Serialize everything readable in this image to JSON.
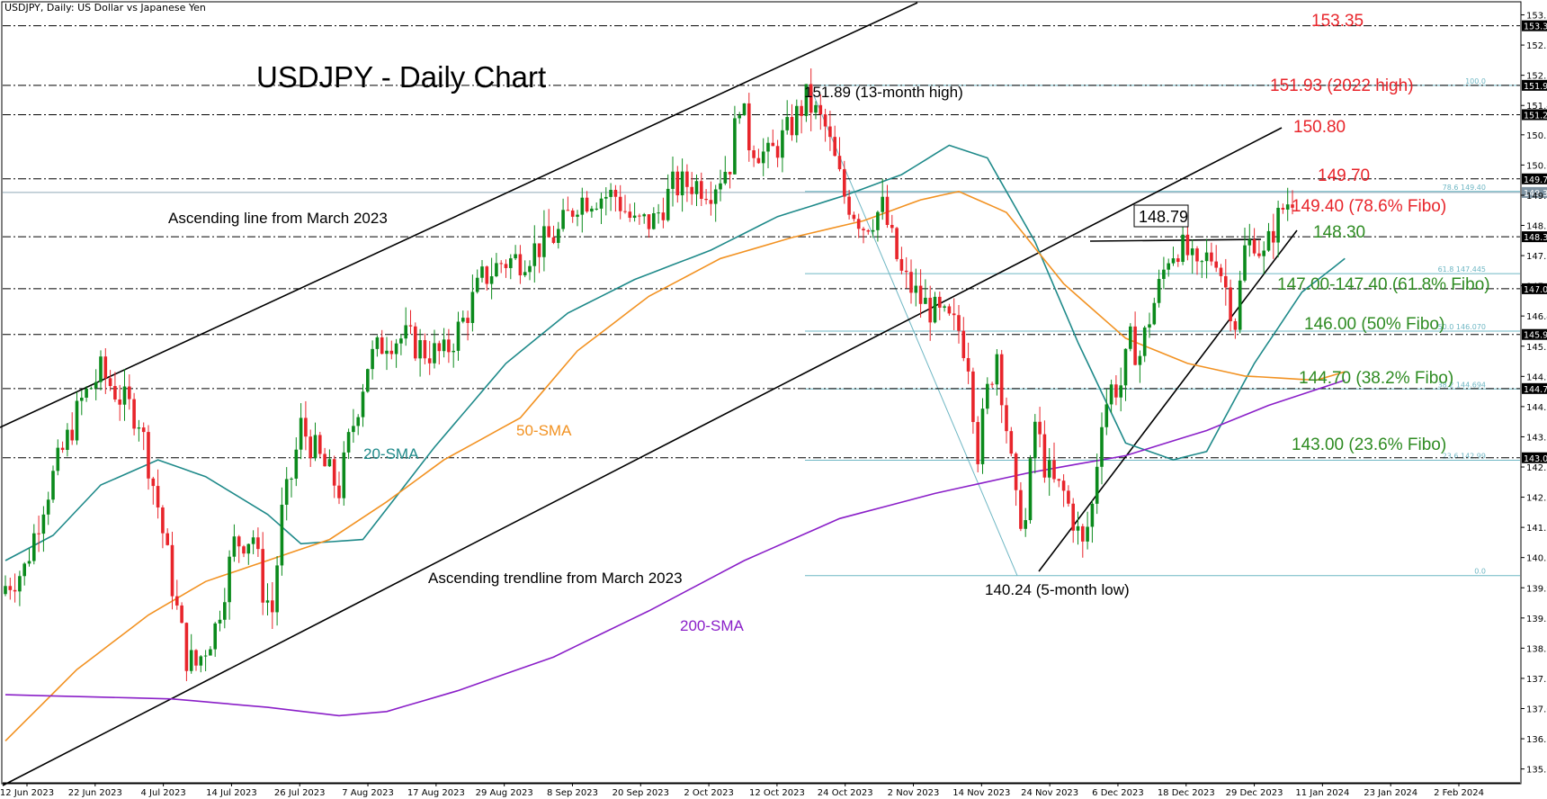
{
  "header": {
    "symbol_line": "USDJPY, Daily:  US Dollar vs Japanese Yen"
  },
  "colors": {
    "bull": "#0b8a1c",
    "bear": "#e8252b",
    "red_label": "#e8252b",
    "green_label": "#2e8b22",
    "sma20": "#1f8a8a",
    "sma50": "#f29222",
    "sma200": "#8a1fc8",
    "fibo": "#6fb7c4",
    "tag_bg": "#000000",
    "tag_fg": "#ffffff"
  },
  "chart_data": {
    "type": "candlestick",
    "title": "USDJPY - Daily Chart",
    "ylim": [
      135.3,
      153.9
    ],
    "y_ticks": [
      "153.610",
      "152.890",
      "152.170",
      "151.450",
      "150.750",
      "150.030",
      "149.310",
      "148.590",
      "147.870",
      "147.150",
      "146.430",
      "145.710",
      "144.990",
      "144.270",
      "143.550",
      "142.830",
      "142.110",
      "141.390",
      "140.670",
      "139.950",
      "139.230",
      "138.510",
      "137.790",
      "137.070",
      "136.350",
      "135.630"
    ],
    "x_ticks": [
      "12 Jun 2023",
      "22 Jun 2023",
      "4 Jul 2023",
      "14 Jul 2023",
      "26 Jul 2023",
      "7 Aug 2023",
      "17 Aug 2023",
      "29 Aug 2023",
      "8 Sep 2023",
      "20 Sep 2023",
      "2 Oct 2023",
      "12 Oct 2023",
      "24 Oct 2023",
      "2 Nov 2023",
      "14 Nov 2023",
      "24 Nov 2023",
      "6 Dec 2023",
      "18 Dec 2023",
      "29 Dec 2023",
      "11 Jan 2024",
      "23 Jan 2024",
      "2 Feb 2024"
    ],
    "horizontal_levels": [
      {
        "value": 153.35,
        "style": "dash-dot",
        "tag": "153.347"
      },
      {
        "value": 151.93,
        "style": "dash-dot",
        "tag": "151.930"
      },
      {
        "value": 151.23,
        "style": "dash-dot",
        "tag": "151.231"
      },
      {
        "value": 149.7,
        "style": "dash-dot",
        "tag": "149.700"
      },
      {
        "value": 148.32,
        "style": "dash-dot",
        "tag": "148.320"
      },
      {
        "value": 147.08,
        "style": "dash-dot",
        "tag": "147.077"
      },
      {
        "value": 145.99,
        "style": "dash-dot",
        "tag": "145.994"
      },
      {
        "value": 144.7,
        "style": "dash-dot",
        "tag": "144.700"
      },
      {
        "value": 143.05,
        "style": "dash-dot",
        "tag": "143.046"
      }
    ],
    "current_price": {
      "value": 149.376,
      "tag": "149.376"
    },
    "fibo_levels": [
      {
        "value": 151.93,
        "label": "100.0"
      },
      {
        "value": 149.4,
        "label": "78.6 149.40"
      },
      {
        "value": 147.44,
        "label": "61.8 147.445"
      },
      {
        "value": 146.07,
        "label": "50.0 146.070"
      },
      {
        "value": 144.69,
        "label": "38.2 144.694"
      },
      {
        "value": 142.99,
        "label": "23.6 142.99"
      },
      {
        "value": 140.24,
        "label": "0.0"
      }
    ],
    "annotations": {
      "high": "151.89 (13-month high)",
      "low": "140.24 (5-month low)",
      "recent_high": "148.79",
      "ascending_line": "Ascending line from March 2023",
      "ascending_trendline": "Ascending trendline from March 2023",
      "sma20": "20-SMA",
      "sma50": "50-SMA",
      "sma200": "200-SMA"
    },
    "level_labels": [
      {
        "text": "153.35",
        "kind": "red"
      },
      {
        "text": "151.93 (2022 high)",
        "kind": "red"
      },
      {
        "text": "150.80",
        "kind": "red"
      },
      {
        "text": "149.70",
        "kind": "red"
      },
      {
        "text": "149.40 (78.6% Fibo)",
        "kind": "red"
      },
      {
        "text": "148.30",
        "kind": "green"
      },
      {
        "text": "147.00-147.40  (61.8% Fibo)",
        "kind": "green"
      },
      {
        "text": "146.00 (50% Fibo)",
        "kind": "green"
      },
      {
        "text": "144.70 (38.2% Fibo)",
        "kind": "green"
      },
      {
        "text": "143.00 (23.6% Fibo)",
        "kind": "green"
      }
    ],
    "series": [
      {
        "name": "20-SMA",
        "points": [
          [
            0,
            140.6
          ],
          [
            10,
            141.2
          ],
          [
            20,
            142.4
          ],
          [
            32,
            143.0
          ],
          [
            42,
            142.6
          ],
          [
            55,
            141.7
          ],
          [
            62,
            141.0
          ],
          [
            75,
            141.1
          ],
          [
            90,
            143.3
          ],
          [
            105,
            145.3
          ],
          [
            118,
            146.5
          ],
          [
            132,
            147.3
          ],
          [
            148,
            148.0
          ],
          [
            162,
            148.8
          ],
          [
            176,
            149.3
          ],
          [
            188,
            149.8
          ],
          [
            198,
            150.5
          ],
          [
            206,
            150.2
          ],
          [
            216,
            148.2
          ],
          [
            225,
            145.8
          ],
          [
            235,
            143.4
          ],
          [
            245,
            143.0
          ],
          [
            252,
            143.2
          ],
          [
            262,
            145.3
          ],
          [
            272,
            147.0
          ],
          [
            281,
            147.8
          ]
        ]
      },
      {
        "name": "50-SMA",
        "points": [
          [
            0,
            136.3
          ],
          [
            15,
            138.0
          ],
          [
            30,
            139.3
          ],
          [
            42,
            140.1
          ],
          [
            55,
            140.6
          ],
          [
            68,
            141.1
          ],
          [
            80,
            142.0
          ],
          [
            92,
            143.0
          ],
          [
            108,
            144.0
          ],
          [
            120,
            145.6
          ],
          [
            135,
            146.9
          ],
          [
            150,
            147.8
          ],
          [
            165,
            148.3
          ],
          [
            180,
            148.7
          ],
          [
            192,
            149.2
          ],
          [
            200,
            149.4
          ],
          [
            210,
            148.9
          ],
          [
            222,
            147.2
          ],
          [
            235,
            145.9
          ],
          [
            248,
            145.3
          ],
          [
            260,
            145.0
          ],
          [
            275,
            144.9
          ],
          [
            281,
            145.1
          ]
        ]
      },
      {
        "name": "200-SMA",
        "points": [
          [
            0,
            137.4
          ],
          [
            35,
            137.3
          ],
          [
            55,
            137.1
          ],
          [
            70,
            136.9
          ],
          [
            80,
            137.0
          ],
          [
            95,
            137.5
          ],
          [
            115,
            138.3
          ],
          [
            135,
            139.4
          ],
          [
            155,
            140.6
          ],
          [
            175,
            141.6
          ],
          [
            195,
            142.2
          ],
          [
            215,
            142.7
          ],
          [
            235,
            143.1
          ],
          [
            252,
            143.7
          ],
          [
            265,
            144.3
          ],
          [
            281,
            144.9
          ]
        ]
      }
    ],
    "ohlc_anchors": [
      [
        0,
        140.0
      ],
      [
        4,
        140.4
      ],
      [
        8,
        142.0
      ],
      [
        12,
        143.2
      ],
      [
        16,
        144.4
      ],
      [
        20,
        145.1
      ],
      [
        24,
        144.5
      ],
      [
        28,
        144.0
      ],
      [
        32,
        141.9
      ],
      [
        36,
        139.4
      ],
      [
        38,
        138.3
      ],
      [
        40,
        138.1
      ],
      [
        44,
        139.0
      ],
      [
        48,
        141.0
      ],
      [
        52,
        141.2
      ],
      [
        54,
        139.9
      ],
      [
        56,
        139.4
      ],
      [
        58,
        141.7
      ],
      [
        60,
        142.6
      ],
      [
        62,
        143.8
      ],
      [
        66,
        143.0
      ],
      [
        70,
        142.3
      ],
      [
        72,
        143.4
      ],
      [
        76,
        145.3
      ],
      [
        80,
        145.9
      ],
      [
        84,
        145.9
      ],
      [
        88,
        145.6
      ],
      [
        92,
        145.5
      ],
      [
        96,
        146.3
      ],
      [
        100,
        147.3
      ],
      [
        104,
        147.7
      ],
      [
        108,
        147.8
      ],
      [
        112,
        148.1
      ],
      [
        116,
        148.4
      ],
      [
        120,
        149.2
      ],
      [
        124,
        149.3
      ],
      [
        128,
        149.3
      ],
      [
        132,
        148.6
      ],
      [
        136,
        148.7
      ],
      [
        140,
        149.5
      ],
      [
        144,
        149.6
      ],
      [
        148,
        149.5
      ],
      [
        152,
        150.1
      ],
      [
        154,
        151.6
      ],
      [
        156,
        150.6
      ],
      [
        160,
        150.2
      ],
      [
        164,
        150.8
      ],
      [
        168,
        151.6
      ],
      [
        172,
        150.9
      ],
      [
        176,
        149.3
      ],
      [
        180,
        148.6
      ],
      [
        184,
        149.0
      ],
      [
        188,
        147.4
      ],
      [
        192,
        146.8
      ],
      [
        196,
        146.4
      ],
      [
        200,
        146.1
      ],
      [
        202,
        145.4
      ],
      [
        204,
        143.2
      ],
      [
        206,
        144.6
      ],
      [
        208,
        145.6
      ],
      [
        210,
        143.8
      ],
      [
        212,
        141.9
      ],
      [
        214,
        141.5
      ],
      [
        216,
        143.9
      ],
      [
        218,
        142.9
      ],
      [
        220,
        142.4
      ],
      [
        222,
        142.2
      ],
      [
        224,
        141.6
      ],
      [
        226,
        140.9
      ],
      [
        228,
        141.9
      ],
      [
        230,
        144.1
      ],
      [
        232,
        144.7
      ],
      [
        234,
        144.8
      ],
      [
        236,
        145.8
      ],
      [
        238,
        145.5
      ],
      [
        240,
        146.4
      ],
      [
        242,
        147.1
      ],
      [
        244,
        147.9
      ],
      [
        246,
        148.1
      ],
      [
        248,
        147.9
      ],
      [
        250,
        147.4
      ],
      [
        252,
        147.8
      ],
      [
        254,
        147.9
      ],
      [
        256,
        147.1
      ],
      [
        258,
        146.3
      ],
      [
        260,
        148.0
      ],
      [
        262,
        148.3
      ],
      [
        264,
        147.8
      ],
      [
        266,
        148.5
      ],
      [
        268,
        149.0
      ],
      [
        270,
        149.3
      ]
    ]
  }
}
